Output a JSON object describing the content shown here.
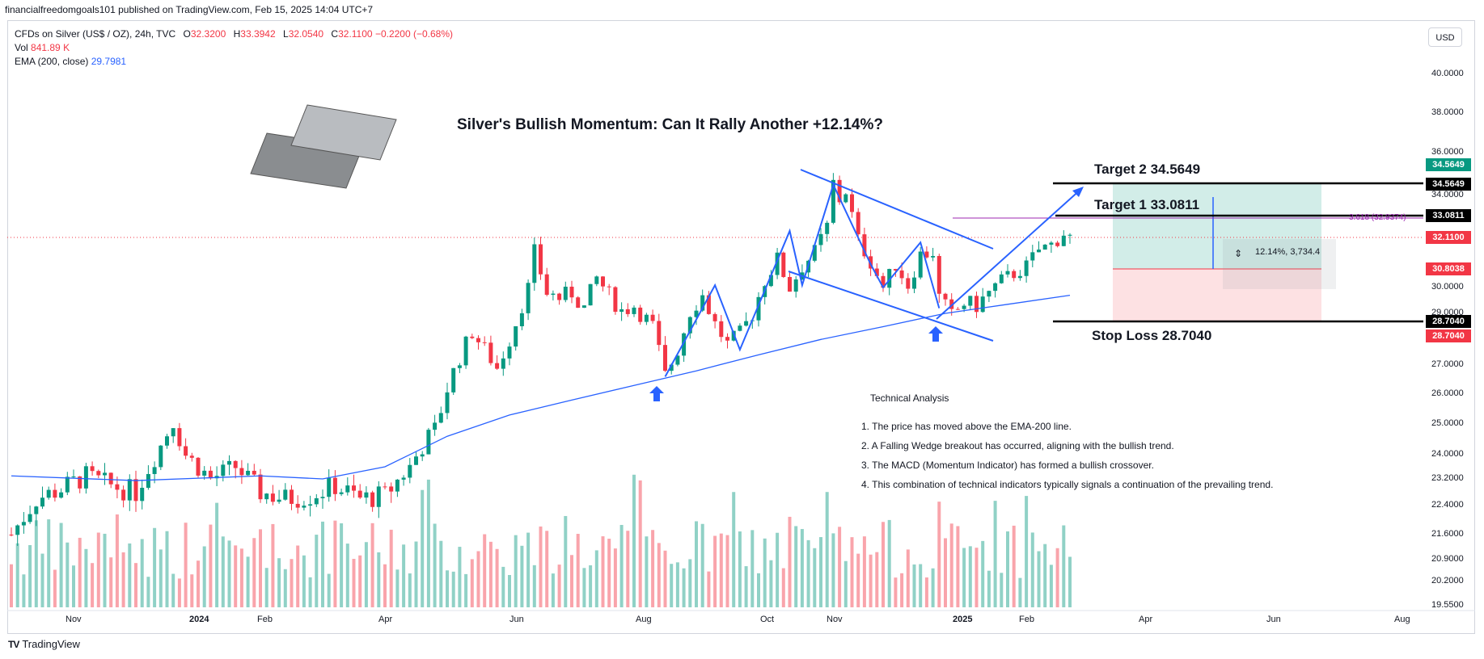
{
  "header": "financialfreedomgoals101 published on TradingView.com, Feb 15, 2025 14:04 UTC+7",
  "legend": {
    "symbol": "CFDs on Silver (US$ / OZ), 24h, TVC",
    "o_label": "O",
    "o_value": "32.3200",
    "h_label": "H",
    "h_value": "33.3942",
    "l_label": "L",
    "l_value": "32.0540",
    "c_label": "C",
    "c_value": "32.1100",
    "change": "−0.2200 (−0.68%)",
    "vol_label": "Vol",
    "vol_value": "841.89 K",
    "ema_label": "EMA (200, close)",
    "ema_value": "29.7981"
  },
  "currency": "USD",
  "title": "Silver's Bullish Momentum: Can It Rally Another +12.14%?",
  "annotations": {
    "target2": "Target 2  34.5649",
    "target1": "Target 1  33.0811",
    "stoploss": "Stop Loss 28.7040",
    "range": "12.14%, 3,734.4",
    "fib": "3.618 (32.9374)"
  },
  "technical_analysis": {
    "title": "Technical Analysis",
    "items": [
      "1. The price has moved above the EMA-200 line.",
      "2.  A Falling Wedge breakout has occurred, aligning with the bullish trend.",
      "3. The MACD (Momentum Indicator) has formed a bullish crossover.",
      "4. This combination of technical indicators typically signals a continuation of the prevailing trend."
    ]
  },
  "price_tags": [
    {
      "value": "34.5649",
      "color": "#089981"
    },
    {
      "value": "34.5649",
      "color": "#000000"
    },
    {
      "value": "33.0811",
      "color": "#000000"
    },
    {
      "value": "32.1100",
      "color": "#f23645"
    },
    {
      "value": "30.8038",
      "color": "#f23645"
    },
    {
      "value": "28.7040",
      "color": "#000000"
    },
    {
      "value": "28.7040",
      "color": "#f23645"
    }
  ],
  "footer": {
    "brand": "TradingView"
  },
  "chart_data": {
    "type": "candlestick",
    "y_ticks": [
      "40.0000",
      "38.0000",
      "36.0000",
      "34.0000",
      "30.0000",
      "29.0000",
      "27.0000",
      "26.0000",
      "25.0000",
      "24.0000",
      "23.2000",
      "22.4000",
      "21.6000",
      "20.9000",
      "20.2000",
      "19.5500"
    ],
    "x_ticks": [
      "Nov",
      "2024",
      "Feb",
      "Apr",
      "Jun",
      "Aug",
      "Oct",
      "Nov",
      "2025",
      "Feb",
      "Apr",
      "Jun",
      "Aug"
    ],
    "ylim": [
      19.55,
      40.0
    ],
    "colors": {
      "up": "#089981",
      "down": "#f23645",
      "ema": "#2962ff",
      "drawing": "#2962ff"
    },
    "series": [
      {
        "name": "Silver price (approx. path)",
        "values": [
          [
            0,
            21.6
          ],
          [
            4,
            22.6
          ],
          [
            8,
            22.9
          ],
          [
            12,
            23.3
          ],
          [
            16,
            23.0
          ],
          [
            20,
            22.8
          ],
          [
            24,
            24.3
          ],
          [
            26,
            25.1
          ],
          [
            28,
            24.0
          ],
          [
            32,
            23.2
          ],
          [
            36,
            23.6
          ],
          [
            40,
            22.8
          ],
          [
            44,
            22.6
          ],
          [
            48,
            22.7
          ],
          [
            52,
            23.0
          ],
          [
            56,
            22.6
          ],
          [
            60,
            22.7
          ],
          [
            64,
            23.6
          ],
          [
            66,
            24.3
          ],
          [
            68,
            24.8
          ],
          [
            70,
            26.2
          ],
          [
            72,
            27.3
          ],
          [
            74,
            28.3
          ],
          [
            76,
            27.6
          ],
          [
            78,
            26.9
          ],
          [
            80,
            28.0
          ],
          [
            83,
            30.0
          ],
          [
            84,
            31.5
          ],
          [
            86,
            29.8
          ],
          [
            88,
            29.6
          ],
          [
            90,
            29.8
          ],
          [
            92,
            29.2
          ],
          [
            94,
            30.4
          ],
          [
            96,
            29.7
          ],
          [
            98,
            29.1
          ],
          [
            100,
            29.3
          ],
          [
            103,
            28.5
          ],
          [
            105,
            26.6
          ],
          [
            107,
            27.6
          ],
          [
            109,
            29.1
          ],
          [
            111,
            29.7
          ],
          [
            113,
            28.6
          ],
          [
            115,
            27.8
          ],
          [
            117,
            28.2
          ],
          [
            119,
            29.0
          ],
          [
            121,
            30.3
          ],
          [
            123,
            31.2
          ],
          [
            125,
            30.0
          ],
          [
            127,
            30.9
          ],
          [
            129,
            31.5
          ],
          [
            131,
            32.6
          ],
          [
            132,
            34.6
          ],
          [
            133,
            33.8
          ],
          [
            134,
            34.2
          ],
          [
            136,
            32.0
          ],
          [
            138,
            31.1
          ],
          [
            140,
            30.0
          ],
          [
            142,
            31.0
          ],
          [
            144,
            30.1
          ],
          [
            146,
            31.4
          ],
          [
            148,
            31.5
          ],
          [
            149,
            29.6
          ],
          [
            151,
            28.9
          ],
          [
            153,
            29.4
          ],
          [
            155,
            29.3
          ],
          [
            157,
            29.8
          ],
          [
            159,
            30.3
          ],
          [
            161,
            30.6
          ],
          [
            163,
            30.9
          ],
          [
            165,
            31.6
          ],
          [
            167,
            31.8
          ],
          [
            169,
            32.3
          ],
          [
            170,
            32.11
          ]
        ]
      },
      {
        "name": "EMA (200, close)",
        "values": [
          [
            0,
            23.3
          ],
          [
            20,
            23.15
          ],
          [
            40,
            23.3
          ],
          [
            50,
            23.2
          ],
          [
            60,
            23.6
          ],
          [
            70,
            24.6
          ],
          [
            80,
            25.3
          ],
          [
            90,
            25.8
          ],
          [
            100,
            26.3
          ],
          [
            110,
            26.8
          ],
          [
            120,
            27.4
          ],
          [
            130,
            28.0
          ],
          [
            140,
            28.5
          ],
          [
            150,
            29.0
          ],
          [
            160,
            29.35
          ],
          [
            170,
            29.7
          ]
        ]
      }
    ],
    "levels": {
      "target2": 34.5649,
      "target1": 33.0811,
      "entry": 30.8038,
      "stop_loss": 28.704,
      "last_close": 32.11
    }
  }
}
